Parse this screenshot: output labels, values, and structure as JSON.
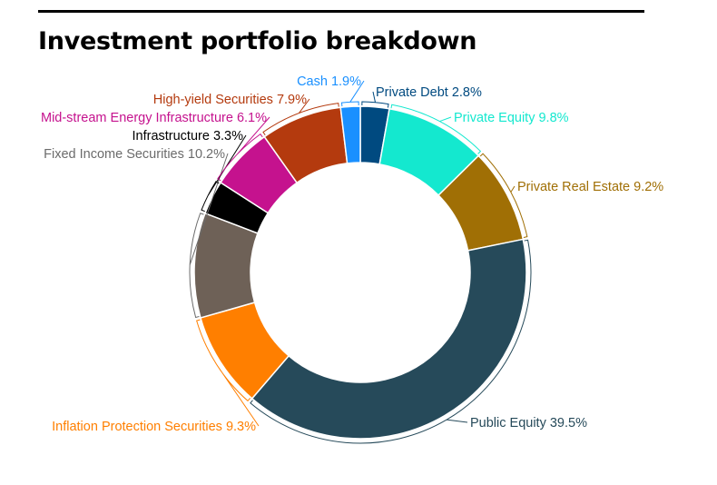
{
  "chart_data": {
    "type": "pie",
    "style": "donut",
    "title": "Investment portfolio breakdown",
    "slices": [
      {
        "label": "Private Debt 2.8%",
        "value": 2.8,
        "color": "#004a80"
      },
      {
        "label": "Private Equity 9.8%",
        "value": 9.8,
        "color": "#14e8cf"
      },
      {
        "label": "Private Real Estate 9.2%",
        "value": 9.2,
        "color": "#a06f05"
      },
      {
        "label": "Public Equity 39.5%",
        "value": 39.5,
        "color": "#264a5a"
      },
      {
        "label": "Inflation Protection Securities 9.3%",
        "value": 9.3,
        "color": "#ff7f00"
      },
      {
        "label": "Fixed Income Securities 10.2%",
        "value": 10.2,
        "color": "#6e6157"
      },
      {
        "label": "Infrastructure 3.3%",
        "value": 3.3,
        "color": "#000000"
      },
      {
        "label": "Mid-stream Energy Infrastructure 6.1%",
        "value": 6.1,
        "color": "#c5128e"
      },
      {
        "label": "High-yield Securities 7.9%",
        "value": 7.9,
        "color": "#b43a0e"
      },
      {
        "label": "Cash 1.9%",
        "value": 1.9,
        "color": "#1a90ff"
      }
    ],
    "label_colors": {
      "Fixed Income Securities 10.2%": "#6b6b6b"
    }
  }
}
